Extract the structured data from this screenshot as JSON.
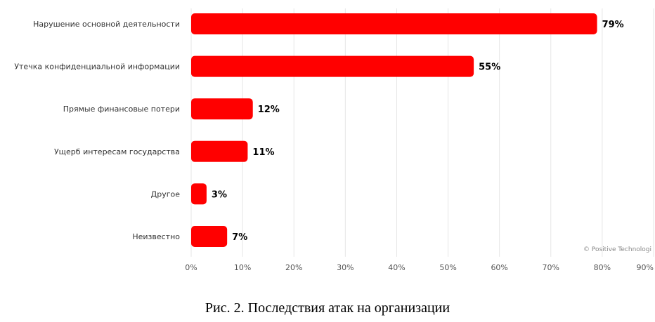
{
  "chart_data": {
    "type": "bar",
    "orientation": "horizontal",
    "categories": [
      "Нарушение основной деятельности",
      "Утечка конфиденциальной информации",
      "Прямые финансовые потери",
      "Ущерб интересам государства",
      "Другое",
      "Неизвестно"
    ],
    "values": [
      79,
      55,
      12,
      11,
      3,
      7
    ],
    "value_labels": [
      "79%",
      "55%",
      "12%",
      "11%",
      "3%",
      "7%"
    ],
    "xlim": [
      0,
      90
    ],
    "xticks": [
      0,
      10,
      20,
      30,
      40,
      50,
      60,
      70,
      80,
      90
    ],
    "xtick_labels": [
      "0%",
      "10%",
      "20%",
      "30%",
      "40%",
      "50%",
      "60%",
      "70%",
      "80%",
      "90%"
    ],
    "grid": true,
    "bar_color": "#ff0000",
    "credit": "© Positive Technologi"
  },
  "caption": "Рис. 2. Последствия атак на организации"
}
